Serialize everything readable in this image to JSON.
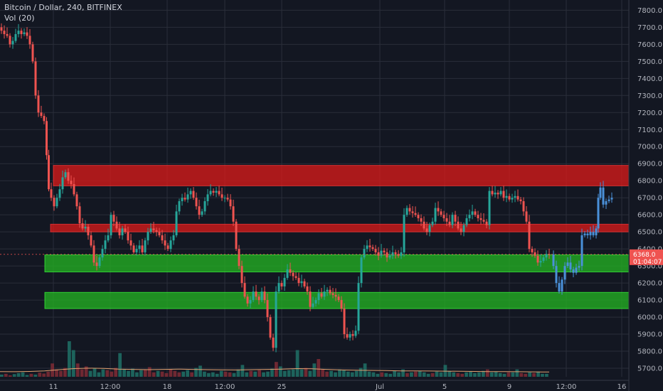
{
  "header": {
    "title": "Bitcoin / Dollar, 240, BITFINEX",
    "volume_label": "Vol (20)"
  },
  "price_tag": {
    "price": "6368.0",
    "countdown": "01:04:07"
  },
  "colors": {
    "background": "#131722",
    "grid": "#2a2e39",
    "up": "#26a69a",
    "down": "#ef5350",
    "projection": "#4a90d9",
    "resistance_zone": "#d61a1a",
    "support_zone": "#22b022",
    "volume_ma": "#e0a070"
  },
  "chart_data": {
    "type": "candlestick",
    "ylim": [
      5650,
      7860
    ],
    "y_ticks": [
      5700,
      5800,
      5900,
      6000,
      6100,
      6200,
      6300,
      6400,
      6500,
      6600,
      6700,
      6800,
      6900,
      7000,
      7100,
      7200,
      7300,
      7400,
      7500,
      7600,
      7700,
      7800
    ],
    "x_ticks": [
      "11",
      "12:00",
      "18",
      "12:00",
      "25",
      "Jul",
      "5",
      "9",
      "12:00",
      "16"
    ],
    "zones": [
      {
        "kind": "resistance",
        "low": 6770,
        "high": 6890
      },
      {
        "kind": "resistance",
        "low": 6500,
        "high": 6545
      },
      {
        "kind": "support",
        "low": 6265,
        "high": 6365
      },
      {
        "kind": "support",
        "low": 6050,
        "high": 6145
      }
    ],
    "last_price": 6368.0,
    "price_path": [
      [
        0,
        7700
      ],
      [
        4,
        7680
      ],
      [
        8,
        7660
      ],
      [
        12,
        7650
      ],
      [
        16,
        7600
      ],
      [
        20,
        7620
      ],
      [
        24,
        7660
      ],
      [
        28,
        7680
      ],
      [
        32,
        7660
      ],
      [
        36,
        7670
      ],
      [
        40,
        7650
      ],
      [
        44,
        7600
      ],
      [
        48,
        7500
      ],
      [
        52,
        7300
      ],
      [
        56,
        7200
      ],
      [
        60,
        7180
      ],
      [
        64,
        7150
      ],
      [
        67,
        6950
      ],
      [
        70,
        6750
      ],
      [
        74,
        6700
      ],
      [
        78,
        6650
      ],
      [
        82,
        6700
      ],
      [
        86,
        6750
      ],
      [
        90,
        6820
      ],
      [
        94,
        6850
      ],
      [
        98,
        6800
      ],
      [
        102,
        6780
      ],
      [
        106,
        6720
      ],
      [
        110,
        6650
      ],
      [
        114,
        6550
      ],
      [
        118,
        6520
      ],
      [
        122,
        6530
      ],
      [
        126,
        6480
      ],
      [
        130,
        6420
      ],
      [
        134,
        6320
      ],
      [
        138,
        6300
      ],
      [
        142,
        6350
      ],
      [
        146,
        6400
      ],
      [
        150,
        6450
      ],
      [
        154,
        6480
      ],
      [
        158,
        6600
      ],
      [
        162,
        6560
      ],
      [
        166,
        6520
      ],
      [
        170,
        6480
      ],
      [
        174,
        6520
      ],
      [
        178,
        6500
      ],
      [
        182,
        6450
      ],
      [
        186,
        6420
      ],
      [
        190,
        6380
      ],
      [
        194,
        6400
      ],
      [
        198,
        6420
      ],
      [
        202,
        6380
      ],
      [
        206,
        6450
      ],
      [
        210,
        6500
      ],
      [
        214,
        6520
      ],
      [
        218,
        6510
      ],
      [
        222,
        6500
      ],
      [
        226,
        6480
      ],
      [
        230,
        6450
      ],
      [
        234,
        6420
      ],
      [
        238,
        6400
      ],
      [
        242,
        6450
      ],
      [
        246,
        6480
      ],
      [
        250,
        6620
      ],
      [
        254,
        6680
      ],
      [
        258,
        6700
      ],
      [
        262,
        6690
      ],
      [
        266,
        6720
      ],
      [
        270,
        6740
      ],
      [
        274,
        6700
      ],
      [
        278,
        6650
      ],
      [
        282,
        6600
      ],
      [
        286,
        6620
      ],
      [
        290,
        6680
      ],
      [
        294,
        6720
      ],
      [
        298,
        6740
      ],
      [
        302,
        6730
      ],
      [
        306,
        6740
      ],
      [
        310,
        6720
      ],
      [
        314,
        6700
      ],
      [
        318,
        6700
      ],
      [
        322,
        6690
      ],
      [
        326,
        6650
      ],
      [
        330,
        6560
      ],
      [
        334,
        6400
      ],
      [
        338,
        6300
      ],
      [
        342,
        6200
      ],
      [
        346,
        6120
      ],
      [
        350,
        6080
      ],
      [
        354,
        6100
      ],
      [
        358,
        6150
      ],
      [
        362,
        6120
      ],
      [
        366,
        6100
      ],
      [
        370,
        6150
      ],
      [
        374,
        6100
      ],
      [
        378,
        6000
      ],
      [
        382,
        5880
      ],
      [
        386,
        5820
      ],
      [
        390,
        6150
      ],
      [
        394,
        6200
      ],
      [
        398,
        6180
      ],
      [
        402,
        6230
      ],
      [
        406,
        6280
      ],
      [
        410,
        6260
      ],
      [
        414,
        6240
      ],
      [
        418,
        6230
      ],
      [
        422,
        6200
      ],
      [
        426,
        6210
      ],
      [
        430,
        6180
      ],
      [
        434,
        6150
      ],
      [
        438,
        6060
      ],
      [
        442,
        6080
      ],
      [
        446,
        6100
      ],
      [
        450,
        6140
      ],
      [
        454,
        6120
      ],
      [
        458,
        6150
      ],
      [
        462,
        6160
      ],
      [
        466,
        6140
      ],
      [
        470,
        6130
      ],
      [
        474,
        6120
      ],
      [
        478,
        6100
      ],
      [
        482,
        6050
      ],
      [
        486,
        5900
      ],
      [
        490,
        5880
      ],
      [
        494,
        5900
      ],
      [
        498,
        5890
      ],
      [
        502,
        5920
      ],
      [
        506,
        6200
      ],
      [
        510,
        6350
      ],
      [
        514,
        6400
      ],
      [
        518,
        6420
      ],
      [
        522,
        6410
      ],
      [
        526,
        6400
      ],
      [
        530,
        6380
      ],
      [
        534,
        6360
      ],
      [
        538,
        6390
      ],
      [
        542,
        6380
      ],
      [
        546,
        6350
      ],
      [
        550,
        6360
      ],
      [
        554,
        6380
      ],
      [
        558,
        6370
      ],
      [
        562,
        6360
      ],
      [
        566,
        6380
      ],
      [
        570,
        6600
      ],
      [
        574,
        6640
      ],
      [
        578,
        6620
      ],
      [
        582,
        6610
      ],
      [
        586,
        6600
      ],
      [
        590,
        6580
      ],
      [
        594,
        6560
      ],
      [
        598,
        6520
      ],
      [
        602,
        6500
      ],
      [
        606,
        6540
      ],
      [
        610,
        6560
      ],
      [
        614,
        6640
      ],
      [
        618,
        6620
      ],
      [
        622,
        6600
      ],
      [
        626,
        6580
      ],
      [
        630,
        6560
      ],
      [
        634,
        6540
      ],
      [
        638,
        6600
      ],
      [
        642,
        6560
      ],
      [
        646,
        6520
      ],
      [
        650,
        6500
      ],
      [
        654,
        6540
      ],
      [
        658,
        6580
      ],
      [
        662,
        6600
      ],
      [
        666,
        6620
      ],
      [
        670,
        6600
      ],
      [
        674,
        6580
      ],
      [
        678,
        6570
      ],
      [
        682,
        6560
      ],
      [
        686,
        6540
      ],
      [
        690,
        6740
      ],
      [
        694,
        6720
      ],
      [
        698,
        6730
      ],
      [
        702,
        6720
      ],
      [
        706,
        6740
      ],
      [
        710,
        6700
      ],
      [
        714,
        6710
      ],
      [
        718,
        6690
      ],
      [
        722,
        6700
      ],
      [
        726,
        6710
      ],
      [
        730,
        6690
      ],
      [
        734,
        6680
      ],
      [
        738,
        6620
      ],
      [
        742,
        6560
      ],
      [
        746,
        6400
      ],
      [
        750,
        6380
      ],
      [
        754,
        6360
      ],
      [
        758,
        6320
      ],
      [
        762,
        6330
      ],
      [
        766,
        6350
      ],
      [
        770,
        6370
      ],
      [
        774,
        6368
      ]
    ],
    "projection_path": [
      [
        776,
        6368
      ],
      [
        780,
        6300
      ],
      [
        784,
        6200
      ],
      [
        788,
        6150
      ],
      [
        792,
        6220
      ],
      [
        796,
        6300
      ],
      [
        800,
        6320
      ],
      [
        804,
        6280
      ],
      [
        808,
        6260
      ],
      [
        812,
        6290
      ],
      [
        816,
        6300
      ],
      [
        820,
        6480
      ],
      [
        824,
        6490
      ],
      [
        828,
        6480
      ],
      [
        832,
        6500
      ],
      [
        836,
        6480
      ],
      [
        840,
        6520
      ],
      [
        842,
        6700
      ],
      [
        846,
        6760
      ],
      [
        850,
        6660
      ],
      [
        854,
        6680
      ],
      [
        858,
        6690
      ],
      [
        862,
        6700
      ]
    ],
    "volume": {
      "max": 2.4,
      "series": [
        0.15,
        0.2,
        0.1,
        0.18,
        0.25,
        0.3,
        0.12,
        0.2,
        0.15,
        0.28,
        0.22,
        0.35,
        0.9,
        0.5,
        0.4,
        0.6,
        2.4,
        1.8,
        0.9,
        0.5,
        0.7,
        0.4,
        0.6,
        0.3,
        0.5,
        0.45,
        0.35,
        0.6,
        1.6,
        0.5,
        0.4,
        0.55,
        0.3,
        0.45,
        0.5,
        0.65,
        0.3,
        0.4,
        0.35,
        0.25,
        0.5,
        0.4,
        0.3,
        0.35,
        0.45,
        0.3,
        0.6,
        0.75,
        0.35,
        0.25,
        0.3,
        0.2,
        0.4,
        0.35,
        0.3,
        0.25,
        0.5,
        0.8,
        0.3,
        0.4,
        0.35,
        0.45,
        0.3,
        0.35,
        0.55,
        1.0,
        0.7,
        0.4,
        0.45,
        0.5,
        1.8,
        0.5,
        0.6,
        0.4,
        0.9,
        1.2,
        0.5,
        0.35,
        0.4,
        0.3,
        0.5,
        0.45,
        0.35,
        0.3,
        0.4,
        0.6,
        0.9,
        0.35,
        0.3,
        0.2,
        0.3,
        0.25,
        0.2,
        0.4,
        0.3,
        0.5,
        0.25,
        0.3,
        0.35,
        0.4,
        0.3,
        0.2,
        0.25,
        0.35,
        0.3,
        0.8,
        0.4,
        0.3,
        0.25,
        0.2,
        0.3,
        0.35,
        0.25,
        0.3,
        0.4,
        0.5,
        0.3,
        0.35,
        0.25,
        0.2,
        0.3,
        0.3,
        0.5,
        0.25,
        0.2,
        0.3,
        0.25,
        0.35,
        0.2,
        0.2
      ],
      "ma": [
        0.35,
        0.34,
        0.36,
        0.4,
        0.48,
        0.55,
        0.58,
        0.56,
        0.52,
        0.5,
        0.48,
        0.5,
        0.52,
        0.5,
        0.48,
        0.47,
        0.46,
        0.48,
        0.5,
        0.52,
        0.55,
        0.54,
        0.5,
        0.46,
        0.44,
        0.43,
        0.42,
        0.4,
        0.4,
        0.39,
        0.38,
        0.37,
        0.36,
        0.35,
        0.35,
        0.34,
        0.33,
        0.32
      ]
    }
  }
}
